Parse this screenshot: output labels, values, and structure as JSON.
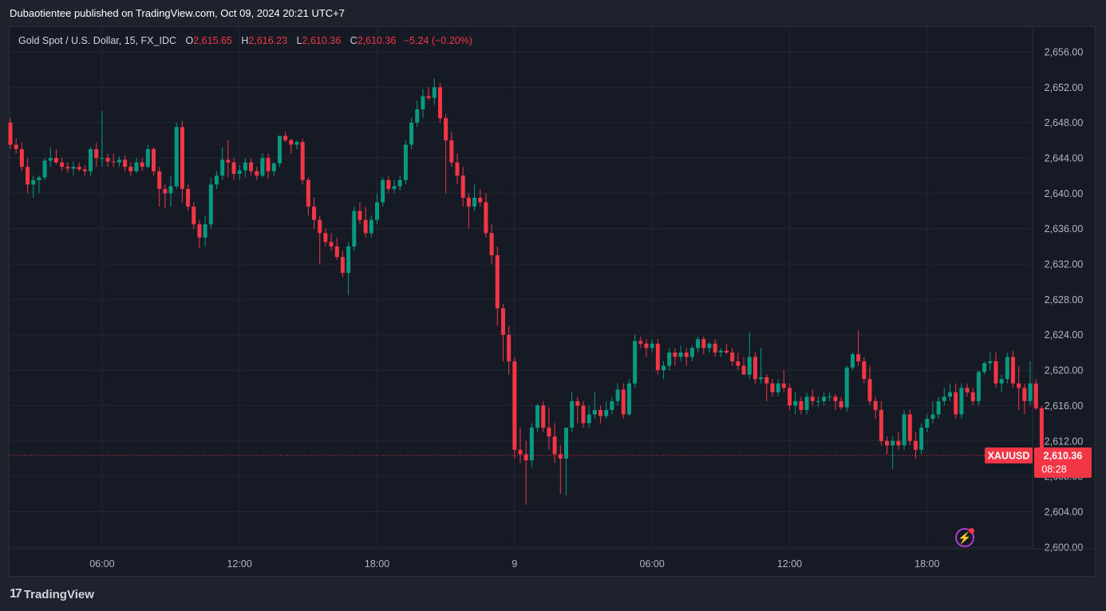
{
  "publisher": "Dubaotientee published on TradingView.com, Oct 09, 2024 20:21 UTC+7",
  "legend": {
    "symbol": "Gold Spot / U.S. Dollar, 15, FX_IDC",
    "o_label": "O",
    "o_value": "2,615.65",
    "h_label": "H",
    "h_value": "2,616.23",
    "l_label": "L",
    "l_value": "2,610.36",
    "c_label": "C",
    "c_value": "2,610.36",
    "change": "−5.24 (−0.20%)"
  },
  "price_tag": {
    "symbol": "XAUUSD",
    "price": "2,610.36",
    "countdown": "08:28"
  },
  "footer": {
    "brand": "TradingView",
    "logo_text": "17"
  },
  "icons": {
    "flash": "lightning-icon",
    "logo": "tradingview-logo-icon"
  },
  "colors": {
    "up": "#089981",
    "down": "#f23645",
    "background": "#161a25",
    "grid": "#232733",
    "text": "#b2b5be"
  },
  "chart_data": {
    "type": "candlestick",
    "title": "Gold Spot / U.S. Dollar, 15, FX_IDC",
    "y_axis": {
      "ticks": [
        2600,
        2604,
        2608,
        2612,
        2616,
        2620,
        2624,
        2628,
        2632,
        2636,
        2640,
        2644,
        2648,
        2652,
        2656
      ],
      "tick_labels": [
        "2,600.00",
        "2,604.00",
        "2,608.00",
        "2,612.00",
        "2,616.00",
        "2,620.00",
        "2,624.00",
        "2,628.00",
        "2,632.00",
        "2,636.00",
        "2,640.00",
        "2,644.00",
        "2,648.00",
        "2,652.00",
        "2,656.00"
      ],
      "range": [
        2599.8,
        2658.8
      ],
      "position": "right"
    },
    "x_axis": {
      "ticks": [
        "06:00",
        "12:00",
        "18:00",
        "9",
        "06:00",
        "12:00",
        "18:00"
      ],
      "tick_bar_index": [
        16,
        40,
        64,
        88,
        112,
        136,
        160
      ]
    },
    "last_price": 2610.36,
    "bar_count": 168,
    "candles": [
      [
        2648.0,
        2648.5,
        2645.0,
        2645.5
      ],
      [
        2645.5,
        2646.2,
        2644.5,
        2645.0
      ],
      [
        2645.0,
        2645.8,
        2642.5,
        2643.0
      ],
      [
        2643.0,
        2644.0,
        2640.0,
        2641.0
      ],
      [
        2641.0,
        2642.0,
        2639.5,
        2641.5
      ],
      [
        2641.5,
        2642.0,
        2640.0,
        2641.8
      ],
      [
        2641.8,
        2644.0,
        2641.5,
        2643.7
      ],
      [
        2643.7,
        2645.2,
        2643.0,
        2644.0
      ],
      [
        2644.0,
        2645.0,
        2643.3,
        2643.5
      ],
      [
        2643.5,
        2644.0,
        2642.5,
        2643.0
      ],
      [
        2643.0,
        2643.5,
        2642.3,
        2642.8
      ],
      [
        2642.8,
        2643.6,
        2642.0,
        2643.0
      ],
      [
        2643.0,
        2643.5,
        2642.5,
        2642.7
      ],
      [
        2642.7,
        2643.2,
        2642.0,
        2642.5
      ],
      [
        2642.5,
        2645.2,
        2642.0,
        2645.0
      ],
      [
        2645.0,
        2645.7,
        2643.0,
        2644.0
      ],
      [
        2644.0,
        2649.3,
        2643.0,
        2644.0
      ],
      [
        2644.0,
        2644.5,
        2643.0,
        2643.6
      ],
      [
        2643.6,
        2644.5,
        2643.0,
        2643.5
      ],
      [
        2643.5,
        2644.2,
        2643.0,
        2643.8
      ],
      [
        2643.8,
        2644.3,
        2642.5,
        2643.0
      ],
      [
        2643.0,
        2643.5,
        2642.0,
        2642.5
      ],
      [
        2642.5,
        2644.0,
        2642.3,
        2643.5
      ],
      [
        2643.5,
        2644.0,
        2642.5,
        2643.0
      ],
      [
        2643.0,
        2645.5,
        2642.8,
        2645.0
      ],
      [
        2645.0,
        2645.2,
        2642.0,
        2642.5
      ],
      [
        2642.5,
        2643.0,
        2638.5,
        2640.5
      ],
      [
        2640.5,
        2641.0,
        2638.3,
        2640.0
      ],
      [
        2640.0,
        2642.0,
        2638.5,
        2640.8
      ],
      [
        2640.8,
        2648.0,
        2640.5,
        2647.5
      ],
      [
        2647.5,
        2648.2,
        2639.0,
        2640.5
      ],
      [
        2640.5,
        2641.0,
        2638.0,
        2638.5
      ],
      [
        2638.5,
        2639.0,
        2636.0,
        2636.5
      ],
      [
        2636.5,
        2637.0,
        2633.8,
        2635.0
      ],
      [
        2635.0,
        2637.5,
        2634.0,
        2636.5
      ],
      [
        2636.5,
        2641.8,
        2636.0,
        2641.0
      ],
      [
        2641.0,
        2642.5,
        2640.5,
        2642.0
      ],
      [
        2642.0,
        2645.2,
        2641.5,
        2643.8
      ],
      [
        2643.8,
        2646.0,
        2641.8,
        2643.5
      ],
      [
        2643.5,
        2644.0,
        2641.5,
        2642.2
      ],
      [
        2642.2,
        2643.2,
        2641.5,
        2642.6
      ],
      [
        2642.6,
        2644.0,
        2641.8,
        2643.5
      ],
      [
        2643.5,
        2644.0,
        2642.0,
        2642.5
      ],
      [
        2642.5,
        2643.0,
        2641.5,
        2642.0
      ],
      [
        2642.0,
        2644.5,
        2641.8,
        2644.0
      ],
      [
        2644.0,
        2644.5,
        2641.6,
        2642.5
      ],
      [
        2642.5,
        2643.5,
        2642.0,
        2643.4
      ],
      [
        2643.4,
        2646.5,
        2643.0,
        2646.5
      ],
      [
        2646.5,
        2647.0,
        2645.8,
        2646.0
      ],
      [
        2646.0,
        2646.2,
        2644.5,
        2645.5
      ],
      [
        2645.5,
        2646.0,
        2645.0,
        2645.8
      ],
      [
        2645.8,
        2646.2,
        2641.0,
        2641.5
      ],
      [
        2641.5,
        2641.8,
        2637.5,
        2638.5
      ],
      [
        2638.5,
        2639.5,
        2636.0,
        2637.0
      ],
      [
        2637.0,
        2637.5,
        2632.0,
        2635.5
      ],
      [
        2635.5,
        2636.0,
        2634.0,
        2634.5
      ],
      [
        2634.5,
        2635.5,
        2633.5,
        2634.0
      ],
      [
        2634.0,
        2635.0,
        2632.5,
        2632.8
      ],
      [
        2632.8,
        2633.5,
        2630.5,
        2631.0
      ],
      [
        2631.0,
        2634.5,
        2628.5,
        2634.0
      ],
      [
        2634.0,
        2638.5,
        2633.5,
        2638.0
      ],
      [
        2638.0,
        2639.0,
        2636.5,
        2637.0
      ],
      [
        2637.0,
        2638.5,
        2635.0,
        2635.5
      ],
      [
        2635.5,
        2637.5,
        2635.0,
        2637.0
      ],
      [
        2637.0,
        2640.0,
        2636.5,
        2639.0
      ],
      [
        2639.0,
        2641.8,
        2638.5,
        2641.5
      ],
      [
        2641.5,
        2642.0,
        2640.0,
        2640.5
      ],
      [
        2640.5,
        2641.5,
        2640.0,
        2640.8
      ],
      [
        2640.8,
        2642.0,
        2640.3,
        2641.5
      ],
      [
        2641.5,
        2646.0,
        2641.0,
        2645.5
      ],
      [
        2645.5,
        2648.5,
        2645.0,
        2648.0
      ],
      [
        2648.0,
        2650.5,
        2647.5,
        2649.5
      ],
      [
        2649.5,
        2651.8,
        2648.5,
        2651.0
      ],
      [
        2651.0,
        2652.0,
        2650.5,
        2650.8
      ],
      [
        2650.8,
        2653.0,
        2650.0,
        2652.0
      ],
      [
        2652.0,
        2652.5,
        2648.0,
        2648.5
      ],
      [
        2648.5,
        2649.0,
        2640.0,
        2646.0
      ],
      [
        2646.0,
        2647.0,
        2643.0,
        2643.5
      ],
      [
        2643.5,
        2644.5,
        2641.0,
        2642.0
      ],
      [
        2642.0,
        2643.0,
        2638.5,
        2639.5
      ],
      [
        2639.5,
        2640.0,
        2636.0,
        2638.5
      ],
      [
        2638.5,
        2641.0,
        2638.0,
        2639.5
      ],
      [
        2639.5,
        2640.5,
        2638.5,
        2639.0
      ],
      [
        2639.0,
        2640.0,
        2635.0,
        2635.5
      ],
      [
        2635.5,
        2636.5,
        2632.0,
        2633.0
      ],
      [
        2633.0,
        2634.0,
        2625.0,
        2627.0
      ],
      [
        2627.0,
        2627.5,
        2621.0,
        2624.0
      ],
      [
        2624.0,
        2625.0,
        2619.5,
        2621.0
      ],
      [
        2621.0,
        2621.5,
        2610.0,
        2611.0
      ],
      [
        2611.0,
        2613.5,
        2609.5,
        2610.5
      ],
      [
        2610.5,
        2612.0,
        2604.8,
        2609.8
      ],
      [
        2609.8,
        2614.0,
        2609.0,
        2613.5
      ],
      [
        2613.5,
        2616.2,
        2613.0,
        2616.0
      ],
      [
        2616.0,
        2616.5,
        2613.0,
        2613.5
      ],
      [
        2613.5,
        2615.8,
        2611.0,
        2612.5
      ],
      [
        2612.5,
        2614.0,
        2609.5,
        2610.5
      ],
      [
        2610.5,
        2611.5,
        2606.0,
        2610.0
      ],
      [
        2610.0,
        2613.5,
        2605.8,
        2613.5
      ],
      [
        2613.5,
        2617.5,
        2613.0,
        2616.5
      ],
      [
        2616.5,
        2617.0,
        2614.0,
        2616.0
      ],
      [
        2616.0,
        2616.5,
        2613.5,
        2614.0
      ],
      [
        2614.0,
        2616.0,
        2613.5,
        2615.0
      ],
      [
        2615.0,
        2617.5,
        2614.5,
        2615.5
      ],
      [
        2615.5,
        2616.0,
        2614.0,
        2614.8
      ],
      [
        2614.8,
        2616.5,
        2614.5,
        2615.5
      ],
      [
        2615.5,
        2617.0,
        2615.0,
        2616.5
      ],
      [
        2616.5,
        2618.5,
        2616.0,
        2617.8
      ],
      [
        2617.8,
        2618.5,
        2614.5,
        2615.0
      ],
      [
        2615.0,
        2619.0,
        2614.8,
        2618.5
      ],
      [
        2618.5,
        2624.0,
        2618.0,
        2623.3
      ],
      [
        2623.3,
        2623.8,
        2622.5,
        2623.0
      ],
      [
        2623.0,
        2623.5,
        2621.5,
        2622.5
      ],
      [
        2622.5,
        2623.5,
        2622.0,
        2623.0
      ],
      [
        2623.0,
        2623.5,
        2619.5,
        2620.0
      ],
      [
        2620.0,
        2621.0,
        2619.0,
        2620.5
      ],
      [
        2620.5,
        2622.5,
        2620.0,
        2622.0
      ],
      [
        2622.0,
        2622.5,
        2620.5,
        2621.5
      ],
      [
        2621.5,
        2622.8,
        2621.0,
        2622.0
      ],
      [
        2622.0,
        2622.5,
        2620.5,
        2621.5
      ],
      [
        2621.5,
        2622.8,
        2621.0,
        2622.5
      ],
      [
        2622.5,
        2623.8,
        2622.0,
        2623.5
      ],
      [
        2623.5,
        2623.8,
        2621.8,
        2622.5
      ],
      [
        2622.5,
        2623.2,
        2622.0,
        2623.0
      ],
      [
        2623.0,
        2623.5,
        2621.5,
        2622.0
      ],
      [
        2622.0,
        2622.5,
        2621.5,
        2622.2
      ],
      [
        2622.2,
        2623.0,
        2621.8,
        2622.0
      ],
      [
        2622.0,
        2622.5,
        2620.5,
        2621.0
      ],
      [
        2621.0,
        2622.0,
        2620.0,
        2620.5
      ],
      [
        2620.5,
        2621.5,
        2619.5,
        2619.5
      ],
      [
        2619.5,
        2624.3,
        2619.0,
        2621.5
      ],
      [
        2621.5,
        2622.0,
        2618.5,
        2619.0
      ],
      [
        2619.0,
        2622.5,
        2618.5,
        2619.2
      ],
      [
        2619.2,
        2619.5,
        2616.5,
        2618.5
      ],
      [
        2618.5,
        2619.0,
        2617.0,
        2617.5
      ],
      [
        2617.5,
        2619.0,
        2617.0,
        2618.5
      ],
      [
        2618.5,
        2620.0,
        2617.5,
        2618.0
      ],
      [
        2618.0,
        2618.5,
        2615.5,
        2616.0
      ],
      [
        2616.0,
        2617.5,
        2615.0,
        2616.5
      ],
      [
        2616.5,
        2617.0,
        2615.0,
        2615.5
      ],
      [
        2615.5,
        2617.5,
        2615.0,
        2617.0
      ],
      [
        2617.0,
        2617.8,
        2616.0,
        2616.5
      ],
      [
        2616.5,
        2617.0,
        2615.8,
        2616.5
      ],
      [
        2616.5,
        2617.5,
        2616.0,
        2617.0
      ],
      [
        2617.0,
        2617.5,
        2616.5,
        2617.0
      ],
      [
        2617.0,
        2617.3,
        2615.5,
        2616.5
      ],
      [
        2616.5,
        2617.0,
        2615.5,
        2615.8
      ],
      [
        2615.8,
        2620.5,
        2615.3,
        2620.3
      ],
      [
        2620.3,
        2622.0,
        2620.0,
        2621.8
      ],
      [
        2621.8,
        2624.5,
        2620.5,
        2621.0
      ],
      [
        2621.0,
        2621.5,
        2618.5,
        2619.0
      ],
      [
        2619.0,
        2620.5,
        2616.0,
        2616.5
      ],
      [
        2616.5,
        2617.0,
        2614.5,
        2615.5
      ],
      [
        2615.5,
        2616.5,
        2611.5,
        2612.0
      ],
      [
        2612.0,
        2612.5,
        2610.5,
        2611.5
      ],
      [
        2611.5,
        2612.5,
        2608.8,
        2612.0
      ],
      [
        2612.0,
        2613.0,
        2611.0,
        2611.5
      ],
      [
        2611.5,
        2615.5,
        2611.0,
        2615.0
      ],
      [
        2615.0,
        2615.5,
        2611.5,
        2612.0
      ],
      [
        2612.0,
        2613.0,
        2610.0,
        2611.0
      ],
      [
        2611.0,
        2614.0,
        2610.5,
        2613.5
      ],
      [
        2613.5,
        2615.0,
        2613.0,
        2614.5
      ],
      [
        2614.5,
        2616.5,
        2614.0,
        2615.0
      ],
      [
        2615.0,
        2617.0,
        2614.5,
        2616.5
      ],
      [
        2616.5,
        2618.0,
        2616.0,
        2617.0
      ],
      [
        2617.0,
        2618.5,
        2616.5,
        2617.5
      ],
      [
        2617.5,
        2618.5,
        2614.5,
        2615.0
      ],
      [
        2615.0,
        2618.5,
        2614.5,
        2618.0
      ],
      [
        2618.0,
        2618.5,
        2617.0,
        2617.5
      ],
      [
        2617.5,
        2618.0,
        2616.0,
        2616.5
      ],
      [
        2616.5,
        2620.0,
        2616.0,
        2619.8
      ],
      [
        2619.8,
        2621.0,
        2619.5,
        2620.8
      ],
      [
        2620.8,
        2622.0,
        2620.0,
        2621.0
      ],
      [
        2621.0,
        2622.0,
        2618.0,
        2618.5
      ],
      [
        2618.5,
        2619.5,
        2617.5,
        2619.0
      ],
      [
        2619.0,
        2622.0,
        2618.5,
        2621.5
      ],
      [
        2621.5,
        2622.2,
        2618.0,
        2618.5
      ],
      [
        2618.5,
        2620.5,
        2615.5,
        2618.0
      ],
      [
        2618.0,
        2618.5,
        2615.0,
        2616.5
      ],
      [
        2616.5,
        2621.0,
        2616.0,
        2618.5
      ],
      [
        2618.5,
        2619.0,
        2615.5,
        2615.7
      ],
      [
        2615.7,
        2616.0,
        2610.0,
        2610.36
      ]
    ]
  }
}
